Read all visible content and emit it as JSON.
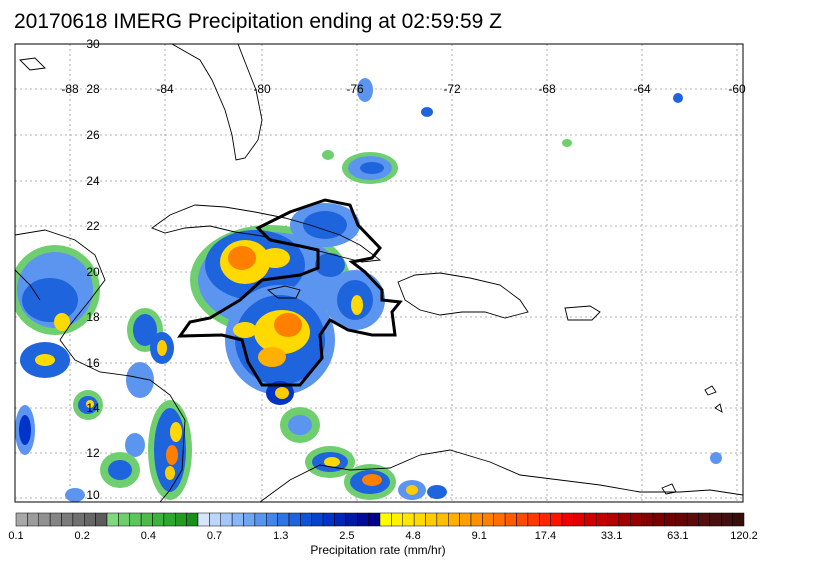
{
  "title": "20170618 IMERG Precipitation ending at 02:59:59 Z",
  "map": {
    "lon_labels": [
      "-88",
      "-84",
      "-80",
      "-76",
      "-72",
      "-68",
      "-64",
      "-60"
    ],
    "lat_labels": [
      "30",
      "28",
      "26",
      "24",
      "22",
      "20",
      "18",
      "16",
      "14",
      "12",
      "10"
    ]
  },
  "colorbar": {
    "title": "Precipitation rate (mm/hr)",
    "tick_labels": [
      "0.1",
      "0.2",
      "0.4",
      "0.7",
      "1.3",
      "2.5",
      "4.8",
      "9.1",
      "17.4",
      "33.1",
      "63.1",
      "120.2"
    ],
    "colors": [
      "#a8a8a8",
      "#9c9c9c",
      "#919191",
      "#858585",
      "#7a7a7a",
      "#707070",
      "#666666",
      "#5c5c5c",
      "#7ed87e",
      "#6ccf6c",
      "#5cc55c",
      "#4cbb4c",
      "#3eb13e",
      "#2fa62f",
      "#239c23",
      "#198f19",
      "#d6e6ff",
      "#bcd6ff",
      "#a3c6fb",
      "#89b6f7",
      "#70a5f2",
      "#5895ed",
      "#4385e8",
      "#2f74e3",
      "#1e64dd",
      "#1053d6",
      "#0543cf",
      "#0033c7",
      "#0025b8",
      "#0018a8",
      "#000c99",
      "#00008a",
      "#ffff00",
      "#fff200",
      "#ffe600",
      "#ffd900",
      "#ffcc00",
      "#ffbf00",
      "#ffb000",
      "#ffa000",
      "#ff9000",
      "#ff7f00",
      "#ff6e00",
      "#ff5c00",
      "#ff4a00",
      "#ff3800",
      "#ff2600",
      "#ff1400",
      "#f00000",
      "#e00000",
      "#d10000",
      "#c20000",
      "#b30000",
      "#a30000",
      "#940000",
      "#850000",
      "#7a0000",
      "#700000",
      "#660505",
      "#5c0a0a",
      "#520f0f",
      "#4a0f0f",
      "#420f0f",
      "#3a0d0d"
    ]
  }
}
